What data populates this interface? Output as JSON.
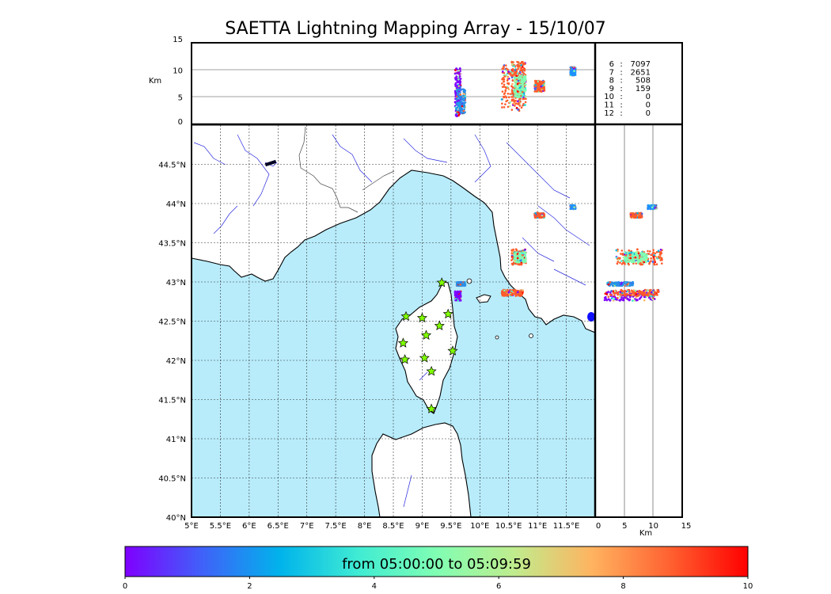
{
  "title": "SAETTA Lightning Mapping Array - 15/10/07",
  "colorbar": {
    "caption": "from 05:00:00 to 05:09:59",
    "ticks": [
      "0",
      "2",
      "4",
      "6",
      "8",
      "10"
    ],
    "colors": [
      "#7f00ff",
      "#3f62f9",
      "#00b4eb",
      "#40ecd3",
      "#80feb3",
      "#c0ec8d",
      "#ffb360",
      "#ff6130",
      "#ff0000"
    ]
  },
  "altitude_panel": {
    "unit_label": "Km",
    "yticks": [
      "15",
      "10",
      "5",
      "0"
    ],
    "ylim": [
      0,
      15
    ]
  },
  "side_panel": {
    "unit_label": "Km",
    "xticks": [
      "0",
      "5",
      "10",
      "15"
    ],
    "xlim": [
      0,
      15
    ]
  },
  "map": {
    "lon_ticks": [
      "5°E",
      "5.5°E",
      "6°E",
      "6.5°E",
      "7°E",
      "7.5°E",
      "8°E",
      "8.5°E",
      "9°E",
      "9.5°E",
      "10°E",
      "10.5°E",
      "11°E",
      "11.5°E"
    ],
    "lat_ticks": [
      "44.5°N",
      "44°N",
      "43.5°N",
      "43°N",
      "42.5°N",
      "42°N",
      "41.5°N",
      "41°N",
      "40.5°N",
      "40°N"
    ],
    "lon_range": [
      5,
      12
    ],
    "lat_range": [
      40,
      45
    ],
    "sea_color": "#b8ecfb",
    "river_color": "#2a2ae0",
    "station_color": "#80ff00"
  },
  "stations": [
    {
      "lon": 9.34,
      "lat": 42.99
    },
    {
      "lon": 8.72,
      "lat": 42.56
    },
    {
      "lon": 9.0,
      "lat": 42.54
    },
    {
      "lon": 9.45,
      "lat": 42.59
    },
    {
      "lon": 9.3,
      "lat": 42.44
    },
    {
      "lon": 9.07,
      "lat": 42.32
    },
    {
      "lon": 8.67,
      "lat": 42.22
    },
    {
      "lon": 9.53,
      "lat": 42.12
    },
    {
      "lon": 8.7,
      "lat": 42.01
    },
    {
      "lon": 9.04,
      "lat": 42.03
    },
    {
      "lon": 9.16,
      "lat": 41.86
    },
    {
      "lon": 9.16,
      "lat": 41.38
    }
  ],
  "counts": [
    {
      "label": "6",
      "value": "7097",
      "color": "#000000"
    },
    {
      "label": "7",
      "value": "2651",
      "color": "#ff0000"
    },
    {
      "label": "8",
      "value": "508",
      "color": "#000000"
    },
    {
      "label": "9",
      "value": "159",
      "color": "#000000"
    },
    {
      "label": "10",
      "value": "0",
      "color": "#000000"
    },
    {
      "label": "11",
      "value": "0",
      "color": "#000000"
    },
    {
      "label": "12",
      "value": "0",
      "color": "#000000"
    }
  ],
  "clusters": [
    {
      "name": "cap-corse",
      "lon": [
        9.57,
        9.67
      ],
      "lat": [
        42.76,
        42.88
      ],
      "alt": [
        1.5,
        10.5
      ],
      "color": "#7f00ff"
    },
    {
      "name": "cap-corse-b",
      "lon": [
        9.6,
        9.75
      ],
      "lat": [
        42.95,
        43.0
      ],
      "alt": [
        2,
        6.5
      ],
      "color": "#2a8fe8"
    },
    {
      "name": "livorno",
      "lon": [
        10.38,
        10.75
      ],
      "lat": [
        42.82,
        42.9
      ],
      "alt": [
        2.5,
        11
      ],
      "color": "#ff5a2a"
    },
    {
      "name": "livorno-b",
      "lon": [
        10.55,
        10.8
      ],
      "lat": [
        43.22,
        43.42
      ],
      "alt": [
        3.5,
        11.5
      ],
      "color": "#ff5a2a"
    },
    {
      "name": "livorno-c",
      "lon": [
        10.6,
        10.8
      ],
      "lat": [
        43.25,
        43.38
      ],
      "alt": [
        5,
        9
      ],
      "color": "#80feb3"
    },
    {
      "name": "florence",
      "lon": [
        10.95,
        11.12
      ],
      "lat": [
        43.82,
        43.88
      ],
      "alt": [
        6,
        8
      ],
      "color": "#ff5a2a"
    },
    {
      "name": "north",
      "lon": [
        11.57,
        11.66
      ],
      "lat": [
        43.93,
        43.98
      ],
      "alt": [
        9,
        10.5
      ],
      "color": "#1e90ff"
    }
  ]
}
